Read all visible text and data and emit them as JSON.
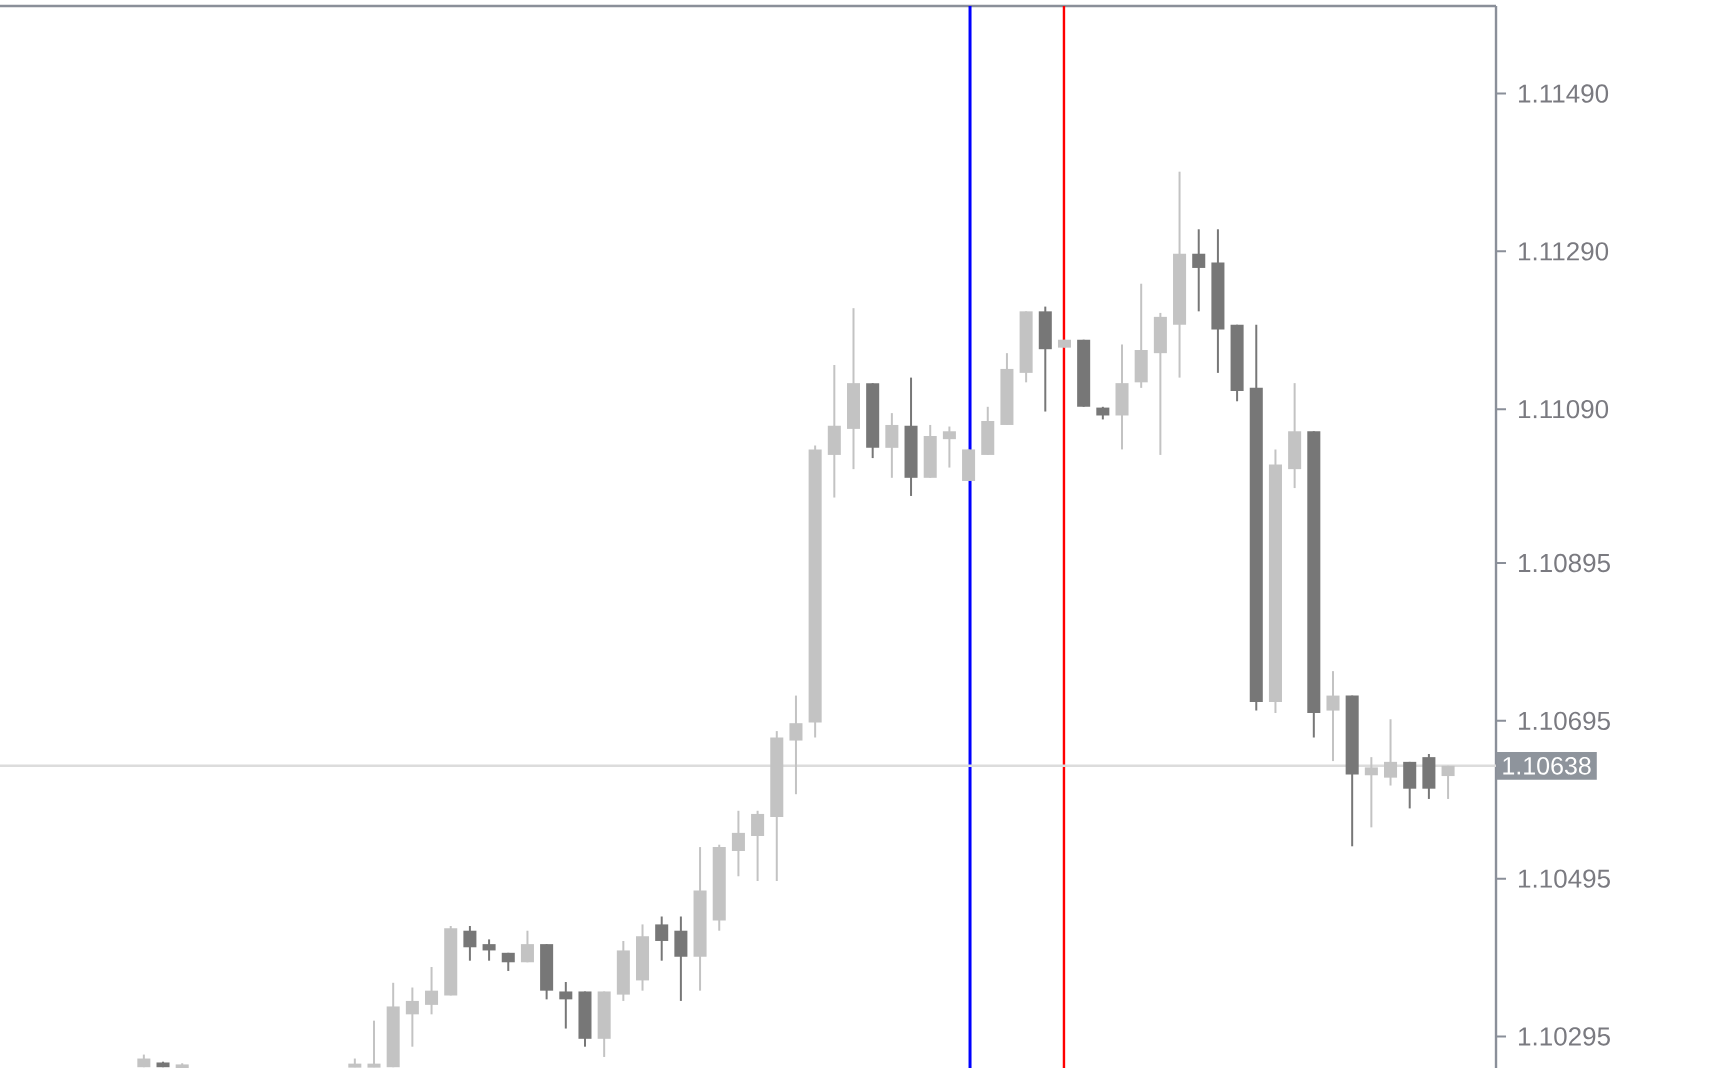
{
  "chart_data": {
    "type": "candlestick",
    "categories": [
      null,
      null,
      null,
      null,
      null,
      null,
      null,
      null,
      null,
      null,
      null,
      null,
      null,
      null,
      null,
      null,
      null,
      null,
      null,
      null,
      null,
      null,
      null,
      null,
      null,
      null,
      null,
      null,
      null,
      null,
      null,
      null,
      null,
      null,
      null,
      null,
      null,
      null,
      null,
      null,
      null,
      null,
      null,
      null,
      null,
      null,
      null,
      null,
      null,
      null,
      null,
      null,
      null,
      null,
      null,
      null,
      null,
      null,
      null,
      null,
      null,
      null,
      null,
      null,
      null,
      null,
      null,
      null,
      null,
      null,
      null,
      null,
      null,
      null,
      null,
      null,
      null,
      null
    ],
    "ohlc": [
      null,
      null,
      null,
      null,
      null,
      null,
      null,
      [
        1.10256,
        1.10272,
        1.10256,
        1.10267
      ],
      [
        1.10262,
        1.10263,
        1.10256,
        1.10256
      ],
      [
        1.10256,
        1.10261,
        1.10256,
        1.10257
      ],
      null,
      null,
      null,
      null,
      null,
      null,
      null,
      null,
      [
        1.10256,
        1.10267,
        1.10256,
        1.10258
      ],
      [
        1.10256,
        1.10315,
        1.10256,
        1.10258
      ],
      [
        1.10256,
        1.10363,
        1.10256,
        1.10333
      ],
      [
        1.10323,
        1.10357,
        1.10282,
        1.1034
      ],
      [
        1.10335,
        1.10383,
        1.10323,
        1.10353
      ],
      [
        1.10347,
        1.10435,
        1.10347,
        1.10432
      ],
      [
        1.10429,
        1.10435,
        1.10391,
        1.10408
      ],
      [
        1.10412,
        1.10418,
        1.10391,
        1.10404
      ],
      [
        1.10401,
        1.10401,
        1.10378,
        1.10389
      ],
      [
        1.10389,
        1.10429,
        1.10389,
        1.10412
      ],
      [
        1.10412,
        1.10412,
        1.10342,
        1.10353
      ],
      [
        1.10352,
        1.10364,
        1.10305,
        1.10342
      ],
      [
        1.10352,
        1.10352,
        1.10282,
        1.10292
      ],
      [
        1.10292,
        1.10352,
        1.10269,
        1.10352
      ],
      [
        1.10348,
        1.10416,
        1.1034,
        1.10404
      ],
      [
        1.10366,
        1.10437,
        1.10353,
        1.10422
      ],
      [
        1.10437,
        1.10447,
        1.10391,
        1.10416
      ],
      [
        1.10429,
        1.10447,
        1.1034,
        1.10396
      ],
      [
        1.10396,
        1.10535,
        1.10353,
        1.1048
      ],
      [
        1.10442,
        1.10538,
        1.10429,
        1.10535
      ],
      [
        1.1053,
        1.10581,
        1.10498,
        1.10553
      ],
      [
        1.10549,
        1.10581,
        1.10492,
        1.10577
      ],
      [
        1.10573,
        1.10682,
        1.10492,
        1.10674
      ],
      [
        1.1067,
        1.10727,
        1.10602,
        1.10692
      ],
      [
        1.10693,
        1.11044,
        1.10674,
        1.11039
      ],
      [
        1.11032,
        1.11146,
        1.10978,
        1.11069
      ],
      [
        1.11065,
        1.11218,
        1.11014,
        1.11123
      ],
      [
        1.11123,
        1.11123,
        1.11028,
        1.11041
      ],
      [
        1.11041,
        1.11085,
        1.11003,
        1.1107
      ],
      [
        1.11069,
        1.1113,
        1.1098,
        1.11003
      ],
      [
        1.11003,
        1.1107,
        1.11003,
        1.11056
      ],
      [
        1.11052,
        1.11068,
        1.11016,
        1.11062
      ],
      [
        1.10999,
        1.11039,
        1.10999,
        1.11039
      ],
      [
        1.11032,
        1.11093,
        1.11032,
        1.11075
      ],
      [
        1.1107,
        1.11161,
        1.1107,
        1.11141
      ],
      [
        1.11136,
        1.11214,
        1.11124,
        1.11214
      ],
      [
        1.11214,
        1.1122,
        1.11087,
        1.11166
      ],
      [
        1.11168,
        1.11178,
        1.11168,
        1.11178
      ],
      [
        1.11178,
        1.11178,
        1.11093,
        1.11093
      ],
      [
        1.11092,
        1.11093,
        1.11077,
        1.11082
      ],
      [
        1.11082,
        1.11172,
        1.11039,
        1.11123
      ],
      [
        1.11124,
        1.11249,
        1.11117,
        1.11165
      ],
      [
        1.11161,
        1.11212,
        1.11032,
        1.11207
      ],
      [
        1.11197,
        1.11391,
        1.1113,
        1.11287
      ],
      [
        1.11287,
        1.11318,
        1.11214,
        1.11269
      ],
      [
        1.11276,
        1.11318,
        1.11136,
        1.11191
      ],
      [
        1.11197,
        1.11197,
        1.111,
        1.11113
      ],
      [
        1.11117,
        1.11197,
        1.10708,
        1.10719
      ],
      [
        1.10719,
        1.11039,
        1.10705,
        1.1102
      ],
      [
        1.11014,
        1.11123,
        1.1099,
        1.11062
      ],
      [
        1.11062,
        1.11062,
        1.10674,
        1.10705
      ],
      [
        1.10708,
        1.10758,
        1.10644,
        1.10727
      ],
      [
        1.10727,
        1.10727,
        1.10536,
        1.10627
      ],
      [
        1.10626,
        1.10649,
        1.1056,
        1.10636
      ],
      [
        1.10623,
        1.10697,
        1.10613,
        1.10643
      ],
      [
        1.10643,
        1.10643,
        1.10584,
        1.10609
      ],
      [
        1.10649,
        1.10653,
        1.10596,
        1.10609
      ],
      [
        1.10625,
        1.10638,
        1.10596,
        1.10638
      ],
      null,
      null
    ],
    "colors": [
      null,
      null,
      null,
      null,
      null,
      null,
      null,
      "#c3c3c3",
      "#777777",
      "#c3c3c3",
      null,
      null,
      null,
      null,
      null,
      null,
      null,
      null,
      "#c3c3c3",
      "#c3c3c3",
      "#c3c3c3",
      "#c3c3c3",
      "#c3c3c3",
      "#c3c3c3",
      "#777777",
      "#777777",
      "#777777",
      "#c3c3c3",
      "#777777",
      "#777777",
      "#777777",
      "#c3c3c3",
      "#c3c3c3",
      "#c3c3c3",
      "#777777",
      "#777777",
      "#c3c3c3",
      "#c3c3c3",
      "#c3c3c3",
      "#c3c3c3",
      "#c3c3c3",
      "#c3c3c3",
      "#c3c3c3",
      "#c3c3c3",
      "#c3c3c3",
      "#777777",
      "#c3c3c3",
      "#777777",
      "#c3c3c3",
      "#c3c3c3",
      "#c3c3c3",
      "#c3c3c3",
      "#c3c3c3",
      "#c3c3c3",
      "#777777",
      "#c3c3c3",
      "#777777",
      "#777777",
      "#c3c3c3",
      "#c3c3c3",
      "#c3c3c3",
      "#c3c3c3",
      "#777777",
      "#777777",
      "#777777",
      "#777777",
      "#c3c3c3",
      "#c3c3c3",
      "#777777",
      "#c3c3c3",
      "#777777",
      "#c3c3c3",
      "#c3c3c3",
      "#777777",
      "#777777",
      "#c3c3c3",
      null,
      null
    ],
    "ylim": [
      1.10255,
      1.11601
    ],
    "yticks": [
      {
        "value": 1.1149,
        "label": "1.11490"
      },
      {
        "value": 1.1129,
        "label": "1.11290"
      },
      {
        "value": 1.1109,
        "label": "1.11090"
      },
      {
        "value": 1.10895,
        "label": "1.10895"
      },
      {
        "value": 1.10695,
        "label": "1.10695"
      },
      {
        "value": 1.10495,
        "label": "1.10495"
      },
      {
        "value": 1.10295,
        "label": "1.10295"
      }
    ],
    "tick_labels": "y",
    "ref_lines": [
      {
        "axis": "y",
        "value": 1.10638,
        "label": "1.10638",
        "color": "#dcdcdc"
      }
    ]
  }
}
